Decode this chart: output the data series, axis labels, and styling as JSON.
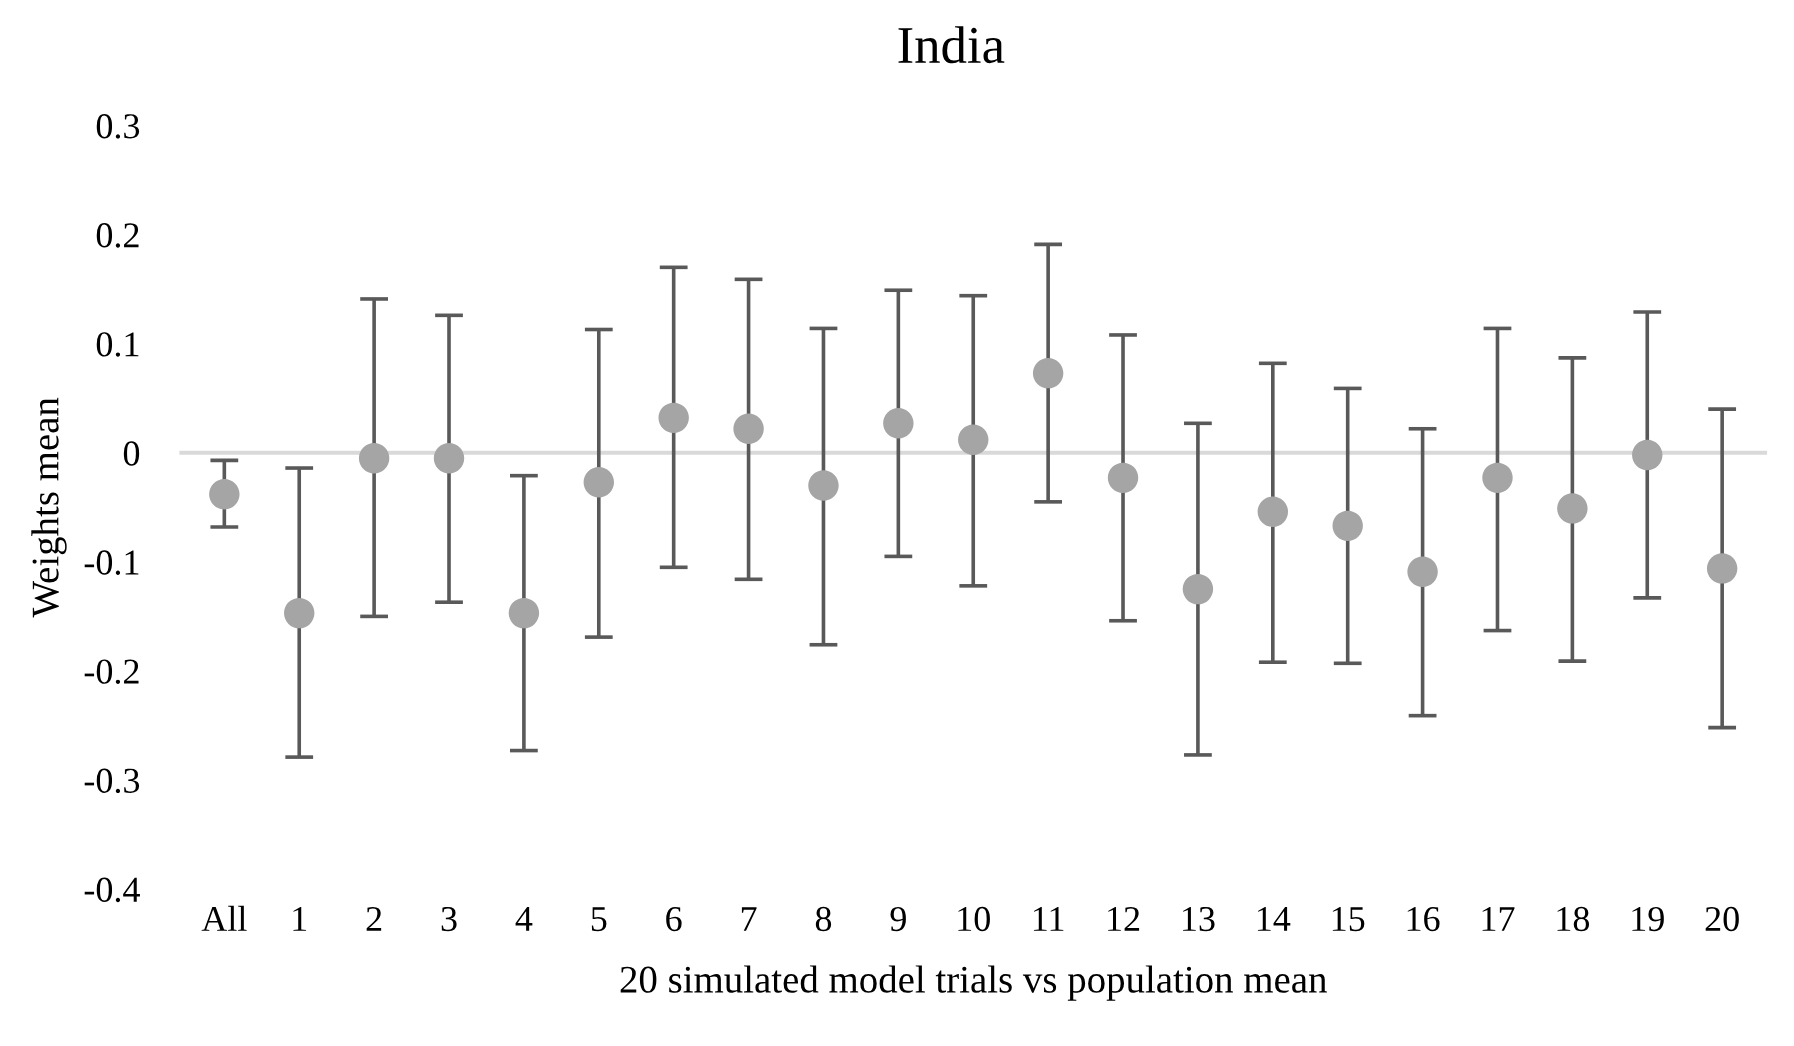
{
  "chart_data": {
    "type": "scatter",
    "title": "India",
    "xlabel": "20 simulated model trials vs population mean",
    "ylabel": "Weights mean",
    "categories": [
      "All",
      "1",
      "2",
      "3",
      "4",
      "5",
      "6",
      "7",
      "8",
      "9",
      "10",
      "11",
      "12",
      "13",
      "14",
      "15",
      "16",
      "17",
      "18",
      "19",
      "20"
    ],
    "series": [
      {
        "color": "#a5a5a5",
        "values": [
          -0.038,
          -0.147,
          -0.005,
          -0.005,
          -0.147,
          -0.027,
          0.032,
          0.022,
          -0.03,
          0.027,
          0.012,
          0.073,
          -0.023,
          -0.125,
          -0.054,
          -0.067,
          -0.109,
          -0.023,
          -0.051,
          -0.002,
          -0.106
        ],
        "errors": [
          [
            -0.068,
            -0.007
          ],
          [
            -0.279,
            -0.014
          ],
          [
            -0.15,
            0.141
          ],
          [
            -0.137,
            0.126
          ],
          [
            -0.273,
            -0.021
          ],
          [
            -0.169,
            0.113
          ],
          [
            -0.105,
            0.17
          ],
          [
            -0.116,
            0.159
          ],
          [
            -0.176,
            0.114
          ],
          [
            -0.095,
            0.149
          ],
          [
            -0.122,
            0.144
          ],
          [
            -0.045,
            0.191
          ],
          [
            -0.154,
            0.108
          ],
          [
            -0.277,
            0.027
          ],
          [
            -0.192,
            0.082
          ],
          [
            -0.193,
            0.059
          ],
          [
            -0.241,
            0.022
          ],
          [
            -0.163,
            0.114
          ],
          [
            -0.191,
            0.087
          ],
          [
            -0.133,
            0.129
          ],
          [
            -0.252,
            0.04
          ]
        ]
      }
    ],
    "ylim": [
      -0.4,
      0.3
    ],
    "yticks": [
      {
        "value": -0.4,
        "label": "-0.4"
      },
      {
        "value": -0.3,
        "label": "-0.3"
      },
      {
        "value": -0.2,
        "label": "-0.2"
      },
      {
        "value": -0.1,
        "label": "-0.1"
      },
      0,
      0.1,
      0.2,
      0.3
    ],
    "ref_lines": [
      {
        "axis": "y",
        "value": 0,
        "color": "#d9d9d9"
      }
    ],
    "marker": "circle",
    "grid": false
  }
}
